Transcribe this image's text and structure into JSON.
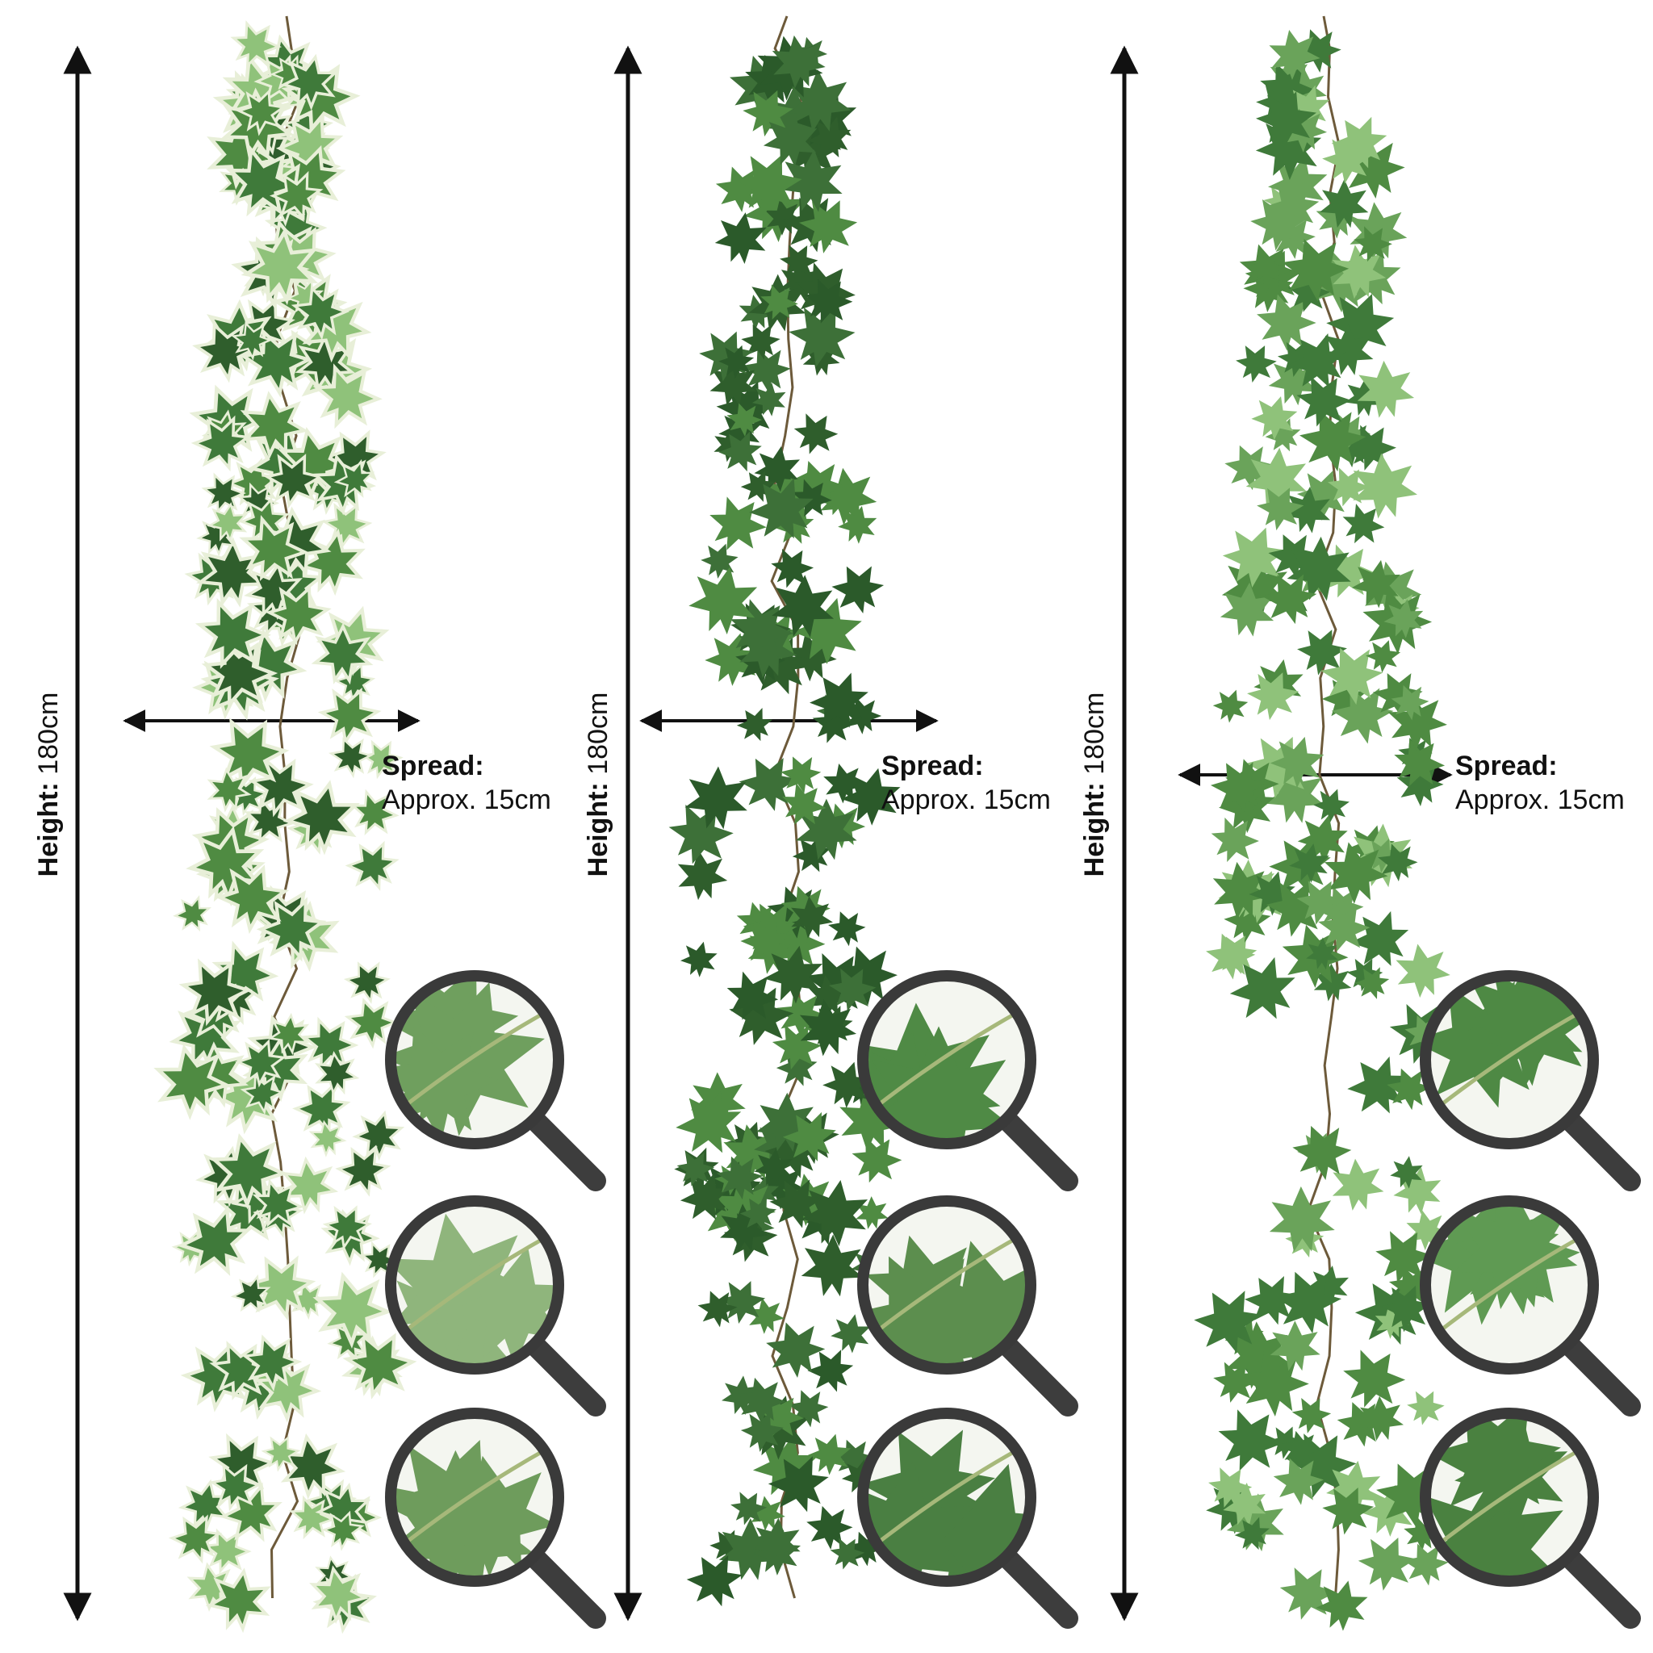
{
  "colors": {
    "ink": "#111111",
    "leaf_dark": "#2f5e2c",
    "leaf_mid": "#4f8b42",
    "leaf_light": "#8fc27a",
    "leaf_edge": "#e8efd8",
    "stem": "#6d5a3a",
    "lens_ring": "#3a3a3a",
    "lens_handle": "#3d3d3d"
  },
  "vines": [
    {
      "variant": "variegated ivy",
      "height_key": "Height:",
      "height_value": "180cm",
      "spread_key": "Spread:",
      "spread_value": "Approx. 15cm",
      "zoom_views": [
        "leaf close-up",
        "stem close-up",
        "leaf close-up"
      ]
    },
    {
      "variant": "dark green ivy",
      "height_key": "Height:",
      "height_value": "180cm",
      "spread_key": "Spread:",
      "spread_value": "Approx. 15cm",
      "zoom_views": [
        "leaf close-up",
        "stem close-up",
        "leaf close-up"
      ]
    },
    {
      "variant": "light green ivy",
      "height_key": "Height:",
      "height_value": "180cm",
      "spread_key": "Spread:",
      "spread_value": "Approx. 15cm",
      "zoom_views": [
        "leaf close-up",
        "stem close-up",
        "leaf close-up"
      ]
    }
  ]
}
